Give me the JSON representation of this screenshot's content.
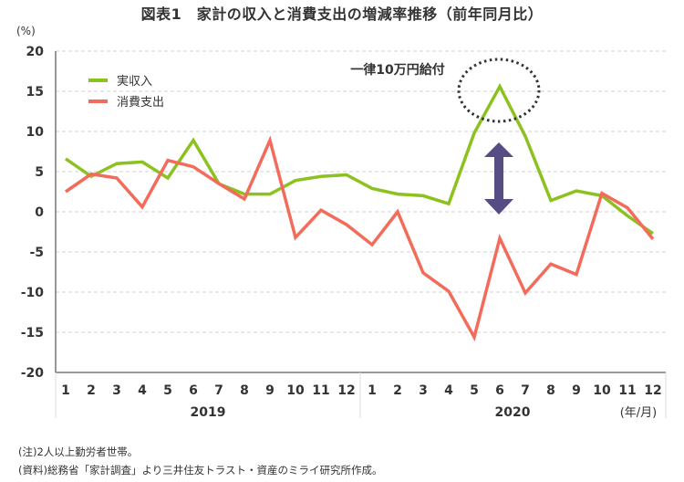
{
  "title": "図表1　家計の収入と消費支出の増減率推移（前年同月比）",
  "y_unit": "(%)",
  "x_unit": "(年/月)",
  "annotation": "一律10万円給付",
  "notes": [
    "(注)2人以上勤労者世帯。",
    "(資料)総務省「家計調査」より三井住友トラスト・資産のミライ研究所作成。"
  ],
  "colors": {
    "income": "#8cc21f",
    "spending": "#f26b5b",
    "arrow": "#574d85",
    "grid": "#d9d9d9",
    "axis": "#777777"
  },
  "chart_data": {
    "type": "line",
    "title": "図表1　家計の収入と消費支出の増減率推移（前年同月比）",
    "xlabel": "(年/月)",
    "ylabel": "(%)",
    "ylim": [
      -20,
      20
    ],
    "yticks": [
      20,
      15,
      10,
      5,
      0,
      -5,
      -10,
      -15,
      -20
    ],
    "grid": true,
    "legend_position": "upper-left",
    "x": [
      "2019/1",
      "2019/2",
      "2019/3",
      "2019/4",
      "2019/5",
      "2019/6",
      "2019/7",
      "2019/8",
      "2019/9",
      "2019/10",
      "2019/11",
      "2019/12",
      "2020/1",
      "2020/2",
      "2020/3",
      "2020/4",
      "2020/5",
      "2020/6",
      "2020/7",
      "2020/8",
      "2020/9",
      "2020/10",
      "2020/11",
      "2020/12"
    ],
    "month_labels": [
      "1",
      "2",
      "3",
      "4",
      "5",
      "6",
      "7",
      "8",
      "9",
      "10",
      "11",
      "12",
      "1",
      "2",
      "3",
      "4",
      "5",
      "6",
      "7",
      "8",
      "9",
      "10",
      "11",
      "12"
    ],
    "year_labels": [
      "2019",
      "2020"
    ],
    "series": [
      {
        "name": "実収入",
        "values": [
          6.6,
          4.4,
          6.0,
          6.2,
          4.2,
          8.9,
          3.5,
          2.2,
          2.2,
          3.9,
          4.4,
          4.6,
          2.9,
          2.2,
          2.0,
          1.0,
          9.8,
          15.6,
          9.4,
          1.4,
          2.6,
          2.0,
          -0.5,
          -2.7
        ]
      },
      {
        "name": "消費支出",
        "values": [
          2.5,
          4.7,
          4.2,
          0.6,
          6.4,
          5.6,
          3.5,
          1.6,
          8.9,
          -3.2,
          0.2,
          -1.6,
          -4.1,
          0.0,
          -7.6,
          -9.9,
          -15.6,
          -3.3,
          -10.1,
          -6.5,
          -7.8,
          2.3,
          0.5,
          -3.4
        ]
      }
    ],
    "annotations": [
      {
        "text": "一律10万円給付",
        "target": "2020/6 実収入 peak (dotted ellipse)"
      },
      {
        "text": "double-headed arrow",
        "target": "gap between 実収入 and 消費支出 at 2020/6"
      }
    ]
  }
}
